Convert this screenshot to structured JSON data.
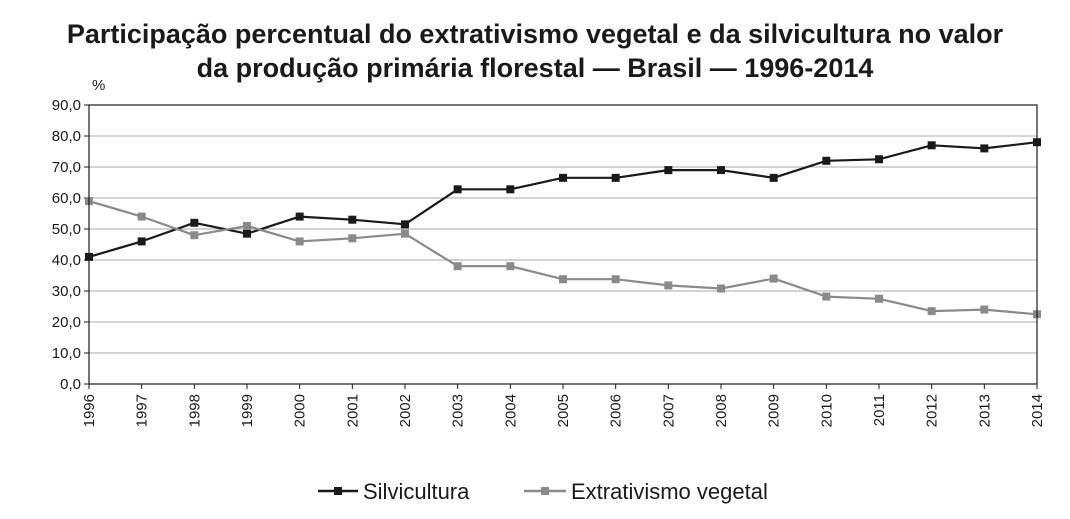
{
  "chart_data": {
    "type": "line",
    "title_line1": "Participação percentual do extrativismo vegetal e da silvicultura no valor",
    "title_line2": "da produção primária florestal — Brasil — 1996-2014",
    "ylabel": "%",
    "xlabel": "",
    "ylim": [
      0,
      90
    ],
    "y_ticks": [
      "0,0",
      "10,0",
      "20,0",
      "30,0",
      "40,0",
      "50,0",
      "60,0",
      "70,0",
      "80,0",
      "90,0"
    ],
    "grid": true,
    "legend_position": "bottom",
    "x": [
      "1996",
      "1997",
      "1998",
      "1999",
      "2000",
      "2001",
      "2002",
      "2003",
      "2004",
      "2005",
      "2006",
      "2007",
      "2008",
      "2009",
      "2010",
      "2011",
      "2012",
      "2013",
      "2014"
    ],
    "series": [
      {
        "name": "Silvicultura",
        "color": "#1a1a1a",
        "values": [
          41.0,
          46.0,
          52.0,
          48.5,
          54.0,
          53.0,
          51.5,
          62.8,
          62.8,
          66.5,
          66.5,
          69.0,
          69.0,
          66.5,
          72.0,
          72.5,
          77.0,
          76.0,
          78.0
        ]
      },
      {
        "name": "Extrativismo vegetal",
        "color": "#8a8a8a",
        "values": [
          59.0,
          54.0,
          48.0,
          51.0,
          46.0,
          47.0,
          48.5,
          38.0,
          38.0,
          33.8,
          33.8,
          31.8,
          30.8,
          34.0,
          28.2,
          27.5,
          23.5,
          24.0,
          22.5
        ]
      }
    ]
  }
}
